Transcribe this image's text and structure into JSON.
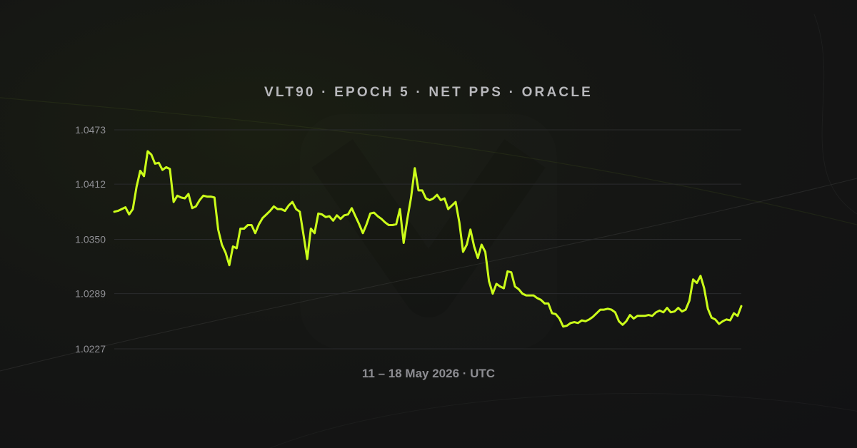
{
  "header": {
    "title": "VLT90 · EPOCH 5 · NET PPS · ORACLE"
  },
  "footer": {
    "caption": "11 – 18 May 2026 · UTC"
  },
  "colors": {
    "background": "#141416",
    "line": "#ccff1a",
    "grid": "#2a2b2d",
    "tick_text": "#8f8f94"
  },
  "chart_data": {
    "type": "line",
    "title": "VLT90 · EPOCH 5 · NET PPS · ORACLE",
    "xlabel": "11 – 18 May 2026 · UTC",
    "ylabel": "",
    "x_range": [
      "2026-05-11",
      "2026-05-18"
    ],
    "ylim": [
      1.0227,
      1.0473
    ],
    "y_ticks": [
      "1.0473",
      "1.0412",
      "1.0350",
      "1.0289",
      "1.0227"
    ],
    "grid": true,
    "legend": "none",
    "series": [
      {
        "values": [
          1.0381,
          1.0382,
          1.0384,
          1.0386,
          1.0378,
          1.0384,
          1.0409,
          1.0427,
          1.0421,
          1.0449,
          1.0445,
          1.0435,
          1.0436,
          1.0428,
          1.0431,
          1.0429,
          1.0392,
          1.0399,
          1.0397,
          1.0396,
          1.0401,
          1.0385,
          1.0387,
          1.0394,
          1.0399,
          1.0398,
          1.0398,
          1.0397,
          1.0361,
          1.0344,
          1.0335,
          1.0321,
          1.0342,
          1.034,
          1.0362,
          1.0362,
          1.0366,
          1.0366,
          1.0357,
          1.0367,
          1.0374,
          1.0378,
          1.0382,
          1.0387,
          1.0384,
          1.0384,
          1.0382,
          1.0388,
          1.0392,
          1.0384,
          1.0381,
          1.0355,
          1.0328,
          1.0362,
          1.0357,
          1.0379,
          1.0378,
          1.0375,
          1.0376,
          1.0371,
          1.0377,
          1.0373,
          1.0377,
          1.0378,
          1.0385,
          1.0376,
          1.0367,
          1.0357,
          1.0367,
          1.0379,
          1.038,
          1.0376,
          1.0373,
          1.0369,
          1.0366,
          1.0366,
          1.0367,
          1.0384,
          1.0346,
          1.0373,
          1.0397,
          1.043,
          1.0405,
          1.0405,
          1.0396,
          1.0394,
          1.0396,
          1.04,
          1.0394,
          1.0396,
          1.0384,
          1.0388,
          1.0392,
          1.0369,
          1.0336,
          1.0344,
          1.0361,
          1.0342,
          1.0329,
          1.0344,
          1.0336,
          1.0303,
          1.0289,
          1.03,
          1.0297,
          1.0295,
          1.0314,
          1.0313,
          1.0297,
          1.0294,
          1.0289,
          1.0287,
          1.0287,
          1.0287,
          1.0284,
          1.0282,
          1.0278,
          1.0278,
          1.0267,
          1.0266,
          1.0261,
          1.0252,
          1.0253,
          1.0256,
          1.0257,
          1.0256,
          1.0259,
          1.0258,
          1.026,
          1.0263,
          1.0267,
          1.0271,
          1.0271,
          1.0272,
          1.0271,
          1.0268,
          1.0258,
          1.0254,
          1.0258,
          1.0265,
          1.0261,
          1.0264,
          1.0264,
          1.0264,
          1.0265,
          1.0264,
          1.0268,
          1.027,
          1.0268,
          1.0273,
          1.0268,
          1.0269,
          1.0273,
          1.0269,
          1.0271,
          1.0281,
          1.0305,
          1.0301,
          1.0309,
          1.0295,
          1.0272,
          1.0262,
          1.026,
          1.0255,
          1.0258,
          1.026,
          1.0259,
          1.0267,
          1.0264,
          1.0275
        ]
      }
    ]
  }
}
